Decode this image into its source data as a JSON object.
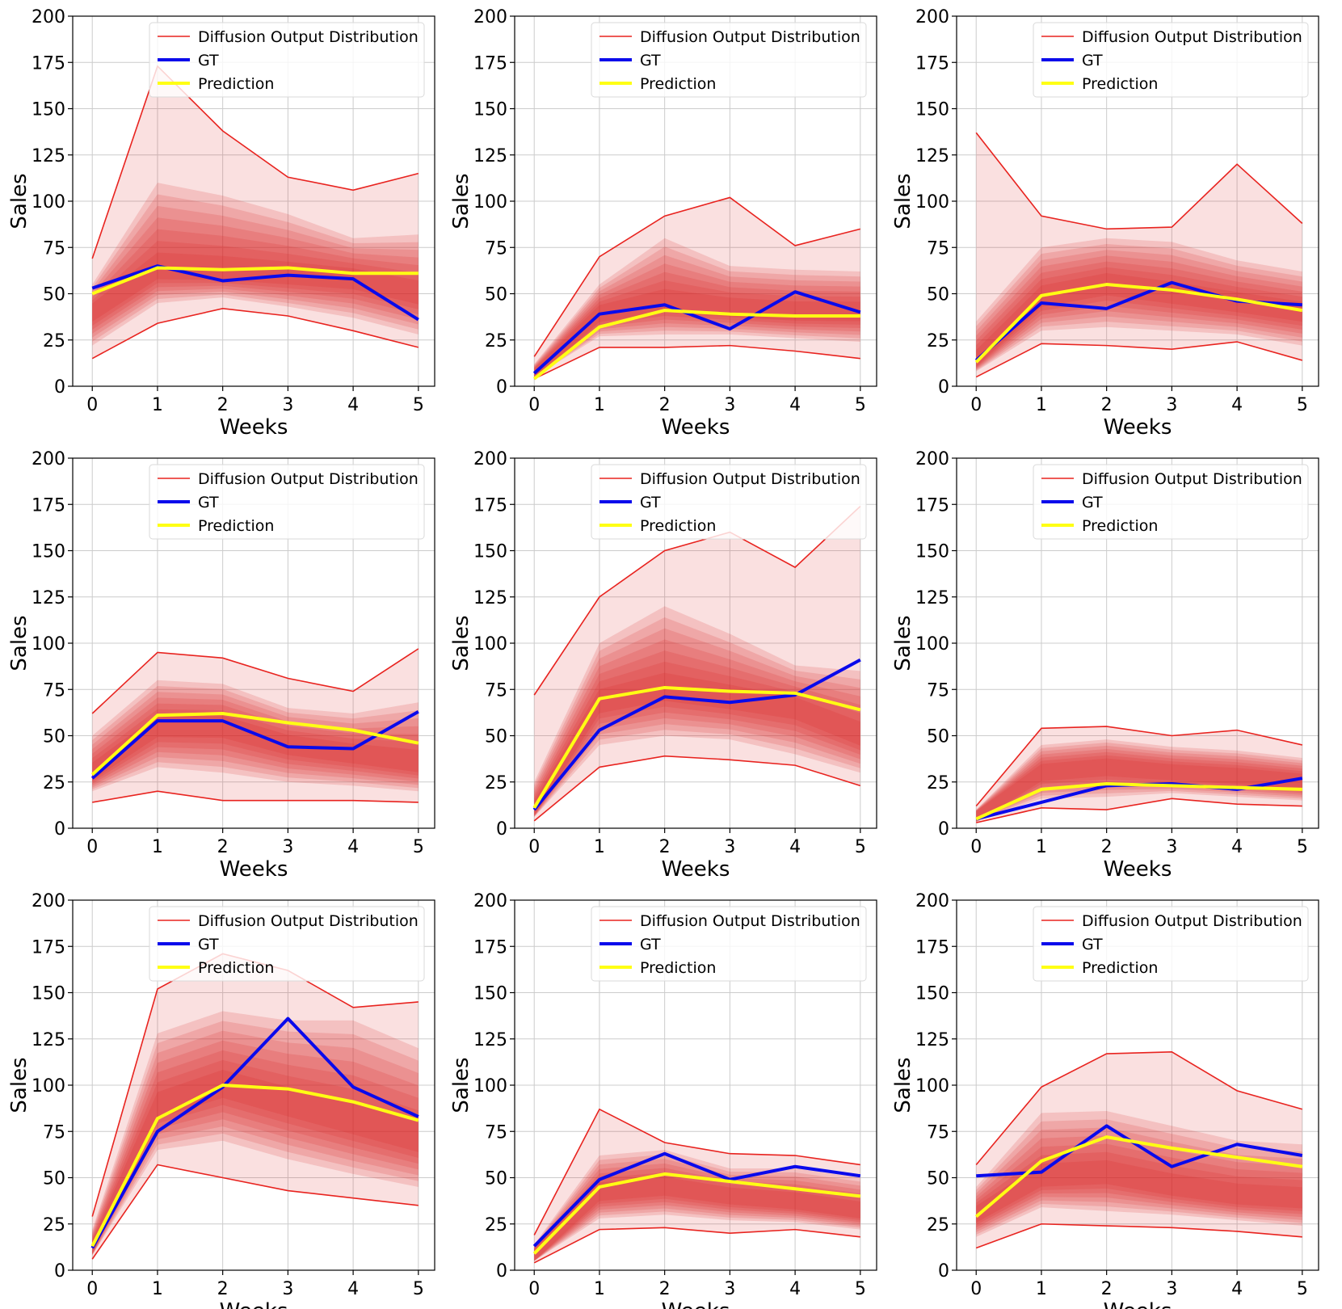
{
  "chart_data": [
    {
      "type": "line",
      "xlabel": "Weeks",
      "ylabel": "Sales",
      "x": [
        0,
        1,
        2,
        3,
        4,
        5
      ],
      "xlim": [
        -0.3,
        5.25
      ],
      "ylim": [
        0,
        200
      ],
      "xticks": [
        "0",
        "1",
        "2",
        "3",
        "4",
        "5"
      ],
      "yticks": [
        "0",
        "25",
        "50",
        "75",
        "100",
        "125",
        "150",
        "175",
        "200"
      ],
      "grid": true,
      "legend_position": "top-right",
      "legend": [
        "Diffusion Output Distribution",
        "GT",
        "Prediction"
      ],
      "series": [
        {
          "name": "Diffusion Output Distribution",
          "kind": "band",
          "upper": [
            69,
            173,
            138,
            113,
            106,
            115
          ],
          "lower": [
            15,
            34,
            42,
            38,
            30,
            21
          ],
          "median": [
            40,
            63,
            62,
            60,
            58,
            50
          ],
          "inner_upper": [
            55,
            110,
            103,
            93,
            80,
            82
          ],
          "inner_lower": [
            22,
            45,
            48,
            43,
            37,
            28
          ]
        },
        {
          "name": "GT",
          "values": [
            53,
            65,
            57,
            60,
            58,
            36
          ]
        },
        {
          "name": "Prediction",
          "values": [
            50,
            64,
            63,
            64,
            61,
            61
          ]
        }
      ]
    },
    {
      "type": "line",
      "xlabel": "Weeks",
      "ylabel": "Sales",
      "x": [
        0,
        1,
        2,
        3,
        4,
        5
      ],
      "xlim": [
        -0.3,
        5.25
      ],
      "ylim": [
        0,
        200
      ],
      "xticks": [
        "0",
        "1",
        "2",
        "3",
        "4",
        "5"
      ],
      "yticks": [
        "0",
        "25",
        "50",
        "75",
        "100",
        "125",
        "150",
        "175",
        "200"
      ],
      "grid": true,
      "legend_position": "top-right",
      "legend": [
        "Diffusion Output Distribution",
        "GT",
        "Prediction"
      ],
      "series": [
        {
          "name": "Diffusion Output Distribution",
          "kind": "band",
          "upper": [
            16,
            70,
            92,
            102,
            76,
            85
          ],
          "lower": [
            4,
            21,
            21,
            22,
            19,
            15
          ],
          "median": [
            6,
            39,
            45,
            42,
            40,
            40
          ],
          "inner_upper": [
            12,
            55,
            80,
            65,
            63,
            62
          ],
          "inner_lower": [
            5,
            27,
            28,
            28,
            26,
            24
          ]
        },
        {
          "name": "GT",
          "values": [
            7,
            39,
            44,
            31,
            51,
            40
          ]
        },
        {
          "name": "Prediction",
          "values": [
            4,
            32,
            41,
            39,
            38,
            38
          ]
        }
      ]
    },
    {
      "type": "line",
      "xlabel": "Weeks",
      "ylabel": "Sales",
      "x": [
        0,
        1,
        2,
        3,
        4,
        5
      ],
      "xlim": [
        -0.3,
        5.25
      ],
      "ylim": [
        0,
        200
      ],
      "xticks": [
        "0",
        "1",
        "2",
        "3",
        "4",
        "5"
      ],
      "yticks": [
        "0",
        "25",
        "50",
        "75",
        "100",
        "125",
        "150",
        "175",
        "200"
      ],
      "grid": true,
      "legend_position": "top-right",
      "legend": [
        "Diffusion Output Distribution",
        "GT",
        "Prediction"
      ],
      "series": [
        {
          "name": "Diffusion Output Distribution",
          "kind": "band",
          "upper": [
            137,
            92,
            85,
            86,
            120,
            88
          ],
          "lower": [
            5,
            23,
            22,
            20,
            24,
            14
          ],
          "median": [
            14,
            48,
            55,
            50,
            45,
            40
          ],
          "inner_upper": [
            35,
            75,
            80,
            78,
            68,
            62
          ],
          "inner_lower": [
            8,
            30,
            32,
            30,
            28,
            22
          ]
        },
        {
          "name": "GT",
          "values": [
            14,
            45,
            42,
            56,
            46,
            44
          ]
        },
        {
          "name": "Prediction",
          "values": [
            13,
            49,
            55,
            52,
            47,
            41
          ]
        }
      ]
    },
    {
      "type": "line",
      "xlabel": "Weeks",
      "ylabel": "Sales",
      "x": [
        0,
        1,
        2,
        3,
        4,
        5
      ],
      "xlim": [
        -0.3,
        5.25
      ],
      "ylim": [
        0,
        200
      ],
      "xticks": [
        "0",
        "1",
        "2",
        "3",
        "4",
        "5"
      ],
      "yticks": [
        "0",
        "25",
        "50",
        "75",
        "100",
        "125",
        "150",
        "175",
        "200"
      ],
      "grid": true,
      "legend_position": "top-right",
      "legend": [
        "Diffusion Output Distribution",
        "GT",
        "Prediction"
      ],
      "series": [
        {
          "name": "Diffusion Output Distribution",
          "kind": "band",
          "upper": [
            62,
            95,
            92,
            81,
            74,
            97
          ],
          "lower": [
            14,
            20,
            15,
            15,
            15,
            14
          ],
          "median": [
            30,
            55,
            55,
            45,
            40,
            35
          ],
          "inner_upper": [
            50,
            80,
            78,
            65,
            62,
            68
          ],
          "inner_lower": [
            20,
            33,
            30,
            25,
            23,
            20
          ]
        },
        {
          "name": "GT",
          "values": [
            27,
            58,
            58,
            44,
            43,
            63
          ]
        },
        {
          "name": "Prediction",
          "values": [
            29,
            61,
            62,
            57,
            53,
            46
          ]
        }
      ]
    },
    {
      "type": "line",
      "xlabel": "Weeks",
      "ylabel": "Sales",
      "x": [
        0,
        1,
        2,
        3,
        4,
        5
      ],
      "xlim": [
        -0.3,
        5.25
      ],
      "ylim": [
        0,
        200
      ],
      "xticks": [
        "0",
        "1",
        "2",
        "3",
        "4",
        "5"
      ],
      "yticks": [
        "0",
        "25",
        "50",
        "75",
        "100",
        "125",
        "150",
        "175",
        "200"
      ],
      "grid": true,
      "legend_position": "top-right",
      "legend": [
        "Diffusion Output Distribution",
        "GT",
        "Prediction"
      ],
      "series": [
        {
          "name": "Diffusion Output Distribution",
          "kind": "band",
          "upper": [
            72,
            125,
            150,
            160,
            141,
            174
          ],
          "lower": [
            4,
            33,
            39,
            37,
            34,
            23
          ],
          "median": [
            10,
            68,
            75,
            70,
            65,
            50
          ],
          "inner_upper": [
            25,
            100,
            120,
            105,
            88,
            85
          ],
          "inner_lower": [
            6,
            45,
            50,
            48,
            40,
            30
          ]
        },
        {
          "name": "GT",
          "values": [
            10,
            53,
            71,
            68,
            72,
            91
          ]
        },
        {
          "name": "Prediction",
          "values": [
            11,
            70,
            76,
            74,
            73,
            64
          ]
        }
      ]
    },
    {
      "type": "line",
      "xlabel": "Weeks",
      "ylabel": "Sales",
      "x": [
        0,
        1,
        2,
        3,
        4,
        5
      ],
      "xlim": [
        -0.3,
        5.25
      ],
      "ylim": [
        0,
        200
      ],
      "xticks": [
        "0",
        "1",
        "2",
        "3",
        "4",
        "5"
      ],
      "yticks": [
        "0",
        "25",
        "50",
        "75",
        "100",
        "125",
        "150",
        "175",
        "200"
      ],
      "grid": true,
      "legend_position": "top-right",
      "legend": [
        "Diffusion Output Distribution",
        "GT",
        "Prediction"
      ],
      "series": [
        {
          "name": "Diffusion Output Distribution",
          "kind": "band",
          "upper": [
            12,
            54,
            55,
            50,
            53,
            45
          ],
          "lower": [
            3,
            11,
            10,
            16,
            13,
            12
          ],
          "median": [
            6,
            30,
            33,
            30,
            28,
            25
          ],
          "inner_upper": [
            10,
            45,
            48,
            44,
            42,
            38
          ],
          "inner_lower": [
            4,
            16,
            17,
            19,
            17,
            15
          ]
        },
        {
          "name": "GT",
          "values": [
            5,
            14,
            23,
            24,
            21,
            27
          ]
        },
        {
          "name": "Prediction",
          "values": [
            5,
            21,
            24,
            23,
            22,
            21
          ]
        }
      ]
    },
    {
      "type": "line",
      "xlabel": "Weeks",
      "ylabel": "Sales",
      "x": [
        0,
        1,
        2,
        3,
        4,
        5
      ],
      "xlim": [
        -0.3,
        5.25
      ],
      "ylim": [
        0,
        200
      ],
      "xticks": [
        "0",
        "1",
        "2",
        "3",
        "4",
        "5"
      ],
      "yticks": [
        "0",
        "25",
        "50",
        "75",
        "100",
        "125",
        "150",
        "175",
        "200"
      ],
      "grid": true,
      "legend_position": "top-right",
      "legend": [
        "Diffusion Output Distribution",
        "GT",
        "Prediction"
      ],
      "series": [
        {
          "name": "Diffusion Output Distribution",
          "kind": "band",
          "upper": [
            29,
            152,
            171,
            162,
            142,
            145
          ],
          "lower": [
            6,
            57,
            50,
            43,
            39,
            35
          ],
          "median": [
            12,
            88,
            100,
            90,
            80,
            70
          ],
          "inner_upper": [
            22,
            128,
            140,
            135,
            135,
            120
          ],
          "inner_lower": [
            8,
            65,
            70,
            60,
            52,
            45
          ]
        },
        {
          "name": "GT",
          "values": [
            12,
            75,
            99,
            136,
            99,
            83
          ]
        },
        {
          "name": "Prediction",
          "values": [
            13,
            82,
            100,
            98,
            91,
            81
          ]
        }
      ]
    },
    {
      "type": "line",
      "xlabel": "Weeks",
      "ylabel": "Sales",
      "x": [
        0,
        1,
        2,
        3,
        4,
        5
      ],
      "xlim": [
        -0.3,
        5.25
      ],
      "ylim": [
        0,
        200
      ],
      "xticks": [
        "0",
        "1",
        "2",
        "3",
        "4",
        "5"
      ],
      "yticks": [
        "0",
        "25",
        "50",
        "75",
        "100",
        "125",
        "150",
        "175",
        "200"
      ],
      "grid": true,
      "legend_position": "top-right",
      "legend": [
        "Diffusion Output Distribution",
        "GT",
        "Prediction"
      ],
      "series": [
        {
          "name": "Diffusion Output Distribution",
          "kind": "band",
          "upper": [
            19,
            87,
            69,
            63,
            62,
            57
          ],
          "lower": [
            4,
            22,
            23,
            20,
            22,
            18
          ],
          "median": [
            8,
            42,
            45,
            40,
            37,
            32
          ],
          "inner_upper": [
            14,
            62,
            65,
            55,
            55,
            50
          ],
          "inner_lower": [
            5,
            28,
            30,
            27,
            26,
            22
          ]
        },
        {
          "name": "GT",
          "values": [
            13,
            49,
            63,
            49,
            56,
            51
          ]
        },
        {
          "name": "Prediction",
          "values": [
            9,
            45,
            52,
            48,
            44,
            40
          ]
        }
      ]
    },
    {
      "type": "line",
      "xlabel": "Weeks",
      "ylabel": "Sales",
      "x": [
        0,
        1,
        2,
        3,
        4,
        5
      ],
      "xlim": [
        -0.3,
        5.25
      ],
      "ylim": [
        0,
        200
      ],
      "xticks": [
        "0",
        "1",
        "2",
        "3",
        "4",
        "5"
      ],
      "yticks": [
        "0",
        "25",
        "50",
        "75",
        "100",
        "125",
        "150",
        "175",
        "200"
      ],
      "grid": true,
      "legend_position": "top-right",
      "legend": [
        "Diffusion Output Distribution",
        "GT",
        "Prediction"
      ],
      "series": [
        {
          "name": "Diffusion Output Distribution",
          "kind": "band",
          "upper": [
            57,
            99,
            117,
            118,
            97,
            87
          ],
          "lower": [
            12,
            25,
            24,
            23,
            21,
            18
          ],
          "median": [
            30,
            50,
            52,
            45,
            40,
            38
          ],
          "inner_upper": [
            45,
            85,
            86,
            78,
            70,
            68
          ],
          "inner_lower": [
            18,
            34,
            32,
            30,
            27,
            24
          ]
        },
        {
          "name": "GT",
          "values": [
            51,
            53,
            78,
            56,
            68,
            62
          ]
        },
        {
          "name": "Prediction",
          "values": [
            29,
            59,
            72,
            66,
            61,
            56
          ]
        }
      ]
    }
  ],
  "colors": {
    "band_line": "#e8231f",
    "band_fill": "#dc2222",
    "gt": "#0a0aeb",
    "prediction": "#ffff14",
    "grid": "#cccccc",
    "axis": "#000000"
  }
}
